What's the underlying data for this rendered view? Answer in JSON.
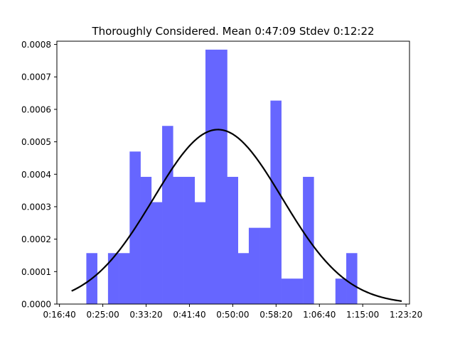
{
  "chart_data": {
    "type": "bar",
    "title": "Thoroughly Considered. Mean 0:47:09 Stdev 0:12:22",
    "xlabel": "",
    "ylabel": "",
    "x_unit": "seconds",
    "xlim": [
      970,
      5040
    ],
    "ylim": [
      0,
      0.00081
    ],
    "x_ticks": [
      {
        "value": 1000,
        "label": "0:16:40"
      },
      {
        "value": 1500,
        "label": "0:25:00"
      },
      {
        "value": 2000,
        "label": "0:33:20"
      },
      {
        "value": 2500,
        "label": "0:41:40"
      },
      {
        "value": 3000,
        "label": "0:50:00"
      },
      {
        "value": 3500,
        "label": "0:58:20"
      },
      {
        "value": 4000,
        "label": "1:06:40"
      },
      {
        "value": 4500,
        "label": "1:15:00"
      },
      {
        "value": 5000,
        "label": "1:23:20"
      }
    ],
    "y_ticks": [
      {
        "value": 0,
        "label": "0.0000"
      },
      {
        "value": 0.0001,
        "label": "0.0001"
      },
      {
        "value": 0.0002,
        "label": "0.0002"
      },
      {
        "value": 0.0003,
        "label": "0.0003"
      },
      {
        "value": 0.0004,
        "label": "0.0004"
      },
      {
        "value": 0.0005,
        "label": "0.0005"
      },
      {
        "value": 0.0006,
        "label": "0.0006"
      },
      {
        "value": 0.0007,
        "label": "0.0007"
      },
      {
        "value": 0.0008,
        "label": "0.0008"
      }
    ],
    "histogram": {
      "color": "#6666ff",
      "bins": [
        {
          "x0": 1310,
          "x1": 1435,
          "y": 0.000157
        },
        {
          "x0": 1435,
          "x1": 1560,
          "y": 0
        },
        {
          "x0": 1560,
          "x1": 1685,
          "y": 0.000157
        },
        {
          "x0": 1685,
          "x1": 1810,
          "y": 0.000157
        },
        {
          "x0": 1810,
          "x1": 1935,
          "y": 0.00047
        },
        {
          "x0": 1935,
          "x1": 2060,
          "y": 0.000392
        },
        {
          "x0": 2060,
          "x1": 2185,
          "y": 0.000314
        },
        {
          "x0": 2185,
          "x1": 2310,
          "y": 0.000549
        },
        {
          "x0": 2310,
          "x1": 2435,
          "y": 0.000392
        },
        {
          "x0": 2435,
          "x1": 2560,
          "y": 0.000392
        },
        {
          "x0": 2560,
          "x1": 2685,
          "y": 0.000314
        },
        {
          "x0": 2685,
          "x1": 2810,
          "y": 0.000784
        },
        {
          "x0": 2810,
          "x1": 2935,
          "y": 0.000784
        },
        {
          "x0": 2935,
          "x1": 3060,
          "y": 0.000392
        },
        {
          "x0": 3060,
          "x1": 3185,
          "y": 0.000157
        },
        {
          "x0": 3185,
          "x1": 3310,
          "y": 0.000235
        },
        {
          "x0": 3310,
          "x1": 3435,
          "y": 0.000235
        },
        {
          "x0": 3435,
          "x1": 3560,
          "y": 0.000627
        },
        {
          "x0": 3560,
          "x1": 3685,
          "y": 7.84e-05
        },
        {
          "x0": 3685,
          "x1": 3810,
          "y": 7.84e-05
        },
        {
          "x0": 3810,
          "x1": 3935,
          "y": 0.000392
        },
        {
          "x0": 3935,
          "x1": 4060,
          "y": 0
        },
        {
          "x0": 4060,
          "x1": 4185,
          "y": 0
        },
        {
          "x0": 4185,
          "x1": 4310,
          "y": 7.84e-05
        },
        {
          "x0": 4310,
          "x1": 4435,
          "y": 0.000157
        }
      ]
    },
    "curve": {
      "type": "normal-pdf",
      "mean": 2829,
      "stdev": 742,
      "x_range": [
        1140,
        4950
      ],
      "color": "#000000"
    },
    "grid": false,
    "legend": "none"
  }
}
